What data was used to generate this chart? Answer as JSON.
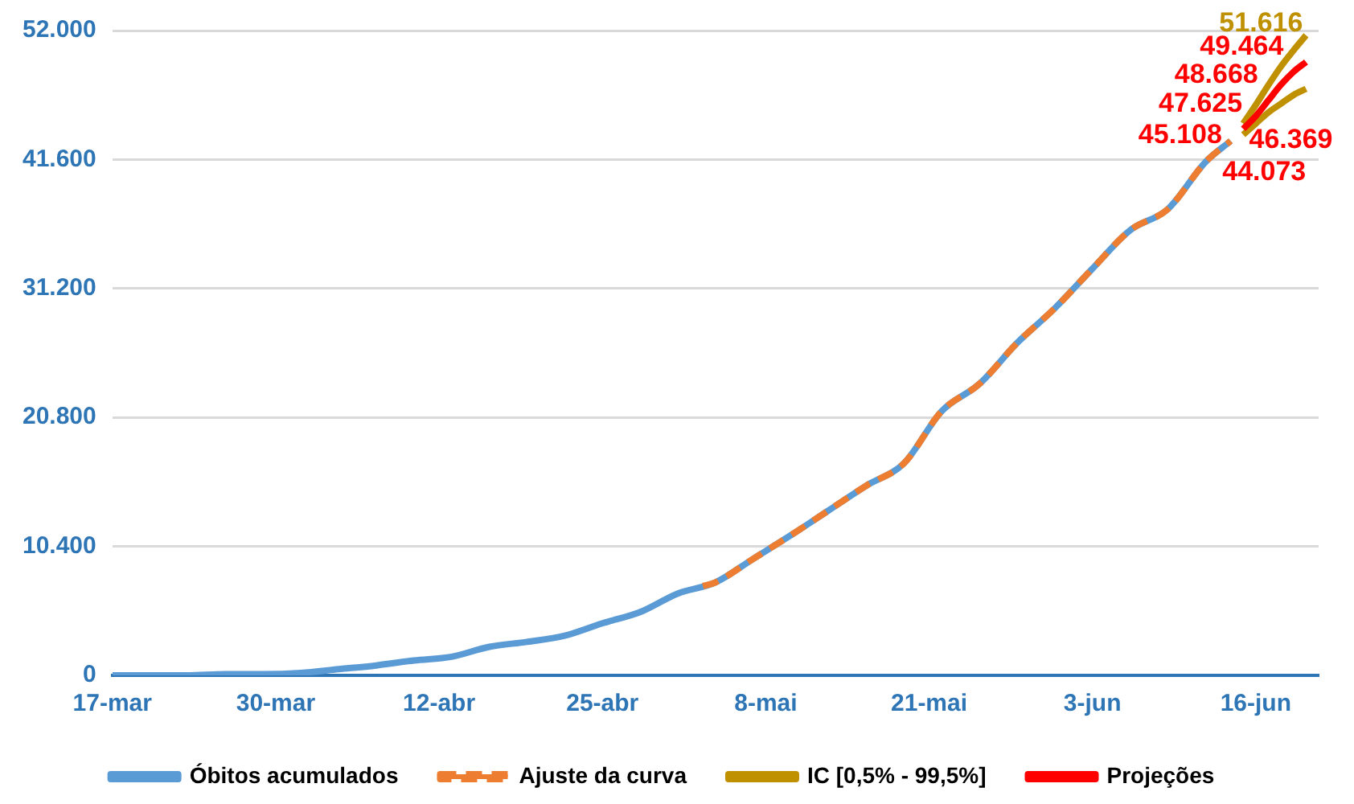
{
  "chart_data": {
    "type": "line",
    "xlim": [
      "--03-17",
      "--06-21"
    ],
    "xticks": [
      {
        "value": "--03-17",
        "label": "17-mar"
      },
      {
        "value": "--03-30",
        "label": "30-mar"
      },
      {
        "value": "--04-12",
        "label": "12-abr"
      },
      {
        "value": "--04-25",
        "label": "25-abr"
      },
      {
        "value": "--05-08",
        "label": "8-mai"
      },
      {
        "value": "--05-21",
        "label": "21-mai"
      },
      {
        "value": "--06-03",
        "label": "3-jun"
      },
      {
        "value": "--06-16",
        "label": "16-jun"
      }
    ],
    "ylim": [
      0,
      52000
    ],
    "yticks": [
      {
        "value": 0,
        "label": "0"
      },
      {
        "value": 10400,
        "label": "10.400"
      },
      {
        "value": 20800,
        "label": "20.800"
      },
      {
        "value": 31200,
        "label": "31.200"
      },
      {
        "value": 41600,
        "label": "41.600"
      },
      {
        "value": 52000,
        "label": "52.000"
      }
    ],
    "grid": "y",
    "legend": "bottom",
    "marker": "none",
    "series": [
      {
        "name": "Óbitos acumulados",
        "color": "#5b9bd5",
        "line_style": "solid",
        "x": [
          "--03-17",
          "--03-20",
          "--03-23",
          "--03-26",
          "--03-29",
          "--04-01",
          "--04-04",
          "--04-07",
          "--04-10",
          "--04-13",
          "--04-16",
          "--04-19",
          "--04-22",
          "--04-25",
          "--04-28",
          "--05-01",
          "--05-04",
          "--05-07",
          "--05-10",
          "--05-13",
          "--05-16",
          "--05-19",
          "--05-22",
          "--05-25",
          "--05-28",
          "--05-31",
          "--06-03",
          "--06-06",
          "--06-09",
          "--06-12",
          "--06-14"
        ],
        "values": [
          0,
          0,
          0,
          100,
          100,
          200,
          500,
          800,
          1200,
          1500,
          2300,
          2700,
          3200,
          4200,
          5100,
          6600,
          7500,
          9400,
          11300,
          13300,
          15300,
          17100,
          21300,
          23500,
          26800,
          29600,
          32800,
          35900,
          37600,
          41400,
          43100
        ]
      },
      {
        "name": "Ajuste da curva",
        "color": "#ed7d31",
        "line_style": "dashed",
        "x": [
          "--05-03",
          "--05-04",
          "--05-07",
          "--05-10",
          "--05-13",
          "--05-16",
          "--05-19",
          "--05-22",
          "--05-25",
          "--05-28",
          "--05-31",
          "--06-03",
          "--06-06",
          "--06-09",
          "--06-12",
          "--06-14"
        ],
        "values": [
          7200,
          7500,
          9400,
          11300,
          13300,
          15300,
          17100,
          21300,
          23500,
          26800,
          29600,
          32800,
          35900,
          37600,
          41400,
          43100
        ]
      },
      {
        "name": "IC [0,5% - 99,5%]",
        "color": "#bf9000",
        "line_style": "solid",
        "x": [
          "--06-15",
          "--06-16",
          "--06-17",
          "--06-18",
          "--06-19",
          "--06-20"
        ],
        "values": [
          44500,
          46000,
          47600,
          49100,
          50400,
          51616
        ],
        "value_labels": [
          null,
          null,
          null,
          null,
          null,
          "51.616"
        ]
      },
      {
        "color": "#bf9000",
        "line_style": "solid",
        "x": [
          "--06-15",
          "--06-16",
          "--06-17",
          "--06-18",
          "--06-19",
          "--06-20"
        ],
        "values": [
          43600,
          44500,
          45400,
          46100,
          46800,
          47300
        ]
      },
      {
        "name": "Projeções",
        "color": "#ff0000",
        "line_style": "solid",
        "x": [
          "--06-15",
          "--06-16",
          "--06-17",
          "--06-18",
          "--06-19",
          "--06-20"
        ],
        "values": [
          44073,
          45108,
          46369,
          47625,
          48668,
          49464
        ],
        "value_labels": [
          "44.073",
          "45.108",
          "46.369",
          "47.625",
          "48.668",
          "49.464"
        ]
      }
    ]
  }
}
